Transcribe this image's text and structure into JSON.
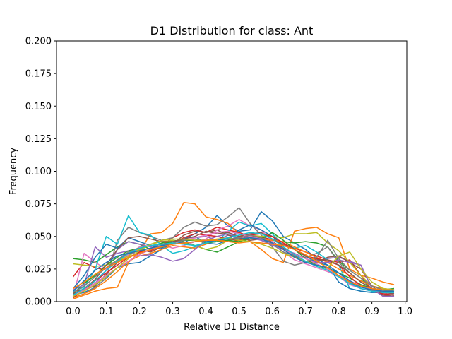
{
  "chart_data": {
    "type": "line",
    "title": "D1 Distribution for class: Ant",
    "xlabel": "Relative D1 Distance",
    "ylabel": "Frequency",
    "xlim": [
      -0.05,
      1.005
    ],
    "ylim": [
      0.0,
      0.2
    ],
    "x_ticks": [
      "0.0",
      "0.1",
      "0.2",
      "0.3",
      "0.4",
      "0.5",
      "0.6",
      "0.7",
      "0.8",
      "0.9",
      "1.0"
    ],
    "y_ticks": [
      "0.000",
      "0.025",
      "0.050",
      "0.075",
      "0.100",
      "0.125",
      "0.150",
      "0.175",
      "0.200"
    ],
    "grid": false,
    "legend": "none",
    "x": [
      0.0,
      0.0333,
      0.0667,
      0.1,
      0.1333,
      0.1667,
      0.2,
      0.2333,
      0.2667,
      0.3,
      0.3333,
      0.3667,
      0.4,
      0.4333,
      0.4667,
      0.5,
      0.5333,
      0.5667,
      0.6,
      0.6333,
      0.6667,
      0.7,
      0.7333,
      0.7667,
      0.8,
      0.8333,
      0.8667,
      0.9,
      0.9333,
      0.9667
    ],
    "series": [
      {
        "color": "#1f77b4",
        "values": [
          0.005,
          0.007,
          0.011,
          0.018,
          0.026,
          0.029,
          0.03,
          0.035,
          0.04,
          0.045,
          0.048,
          0.052,
          0.057,
          0.066,
          0.058,
          0.054,
          0.055,
          0.069,
          0.062,
          0.05,
          0.045,
          0.04,
          0.033,
          0.028,
          0.022,
          0.015,
          0.01,
          0.008,
          0.006,
          0.005
        ]
      },
      {
        "color": "#ff7f0e",
        "values": [
          0.002,
          0.005,
          0.008,
          0.01,
          0.011,
          0.03,
          0.038,
          0.052,
          0.053,
          0.06,
          0.076,
          0.075,
          0.065,
          0.063,
          0.06,
          0.052,
          0.046,
          0.04,
          0.033,
          0.03,
          0.054,
          0.056,
          0.057,
          0.052,
          0.049,
          0.025,
          0.02,
          0.018,
          0.015,
          0.013
        ]
      },
      {
        "color": "#2ca02c",
        "values": [
          0.033,
          0.032,
          0.03,
          0.036,
          0.042,
          0.046,
          0.044,
          0.04,
          0.045,
          0.047,
          0.046,
          0.043,
          0.04,
          0.038,
          0.042,
          0.046,
          0.048,
          0.05,
          0.047,
          0.046,
          0.045,
          0.046,
          0.045,
          0.042,
          0.031,
          0.024,
          0.018,
          0.009,
          0.005,
          0.004
        ]
      },
      {
        "color": "#d62728",
        "values": [
          0.019,
          0.03,
          0.026,
          0.024,
          0.032,
          0.037,
          0.039,
          0.041,
          0.043,
          0.049,
          0.053,
          0.055,
          0.053,
          0.057,
          0.055,
          0.053,
          0.05,
          0.049,
          0.048,
          0.044,
          0.041,
          0.038,
          0.035,
          0.032,
          0.03,
          0.032,
          0.02,
          0.009,
          0.008,
          0.008
        ]
      },
      {
        "color": "#9467bd",
        "values": [
          0.005,
          0.01,
          0.014,
          0.024,
          0.04,
          0.046,
          0.044,
          0.042,
          0.044,
          0.046,
          0.047,
          0.049,
          0.05,
          0.047,
          0.051,
          0.048,
          0.052,
          0.047,
          0.043,
          0.04,
          0.034,
          0.03,
          0.031,
          0.033,
          0.034,
          0.031,
          0.028,
          0.01,
          0.005,
          0.004
        ]
      },
      {
        "color": "#8c564b",
        "values": [
          0.008,
          0.009,
          0.012,
          0.021,
          0.03,
          0.036,
          0.04,
          0.038,
          0.042,
          0.044,
          0.051,
          0.054,
          0.053,
          0.055,
          0.051,
          0.049,
          0.047,
          0.048,
          0.046,
          0.041,
          0.035,
          0.031,
          0.03,
          0.034,
          0.035,
          0.03,
          0.025,
          0.012,
          0.005,
          0.004
        ]
      },
      {
        "color": "#e377c2",
        "values": [
          0.004,
          0.037,
          0.03,
          0.025,
          0.031,
          0.036,
          0.042,
          0.043,
          0.044,
          0.041,
          0.043,
          0.046,
          0.048,
          0.055,
          0.058,
          0.063,
          0.058,
          0.055,
          0.046,
          0.038,
          0.032,
          0.029,
          0.026,
          0.023,
          0.019,
          0.013,
          0.01,
          0.008,
          0.007,
          0.006
        ]
      },
      {
        "color": "#7f7f7f",
        "values": [
          0.003,
          0.006,
          0.011,
          0.018,
          0.047,
          0.057,
          0.053,
          0.05,
          0.047,
          0.049,
          0.057,
          0.061,
          0.058,
          0.059,
          0.065,
          0.072,
          0.06,
          0.051,
          0.044,
          0.038,
          0.035,
          0.034,
          0.037,
          0.042,
          0.03,
          0.022,
          0.015,
          0.01,
          0.008,
          0.007
        ]
      },
      {
        "color": "#bcbd22",
        "values": [
          0.029,
          0.028,
          0.027,
          0.028,
          0.031,
          0.035,
          0.04,
          0.044,
          0.046,
          0.047,
          0.045,
          0.043,
          0.04,
          0.042,
          0.047,
          0.049,
          0.051,
          0.05,
          0.05,
          0.049,
          0.052,
          0.052,
          0.053,
          0.045,
          0.039,
          0.03,
          0.02,
          0.012,
          0.009,
          0.008
        ]
      },
      {
        "color": "#17becf",
        "values": [
          0.008,
          0.011,
          0.025,
          0.05,
          0.044,
          0.066,
          0.053,
          0.051,
          0.043,
          0.037,
          0.039,
          0.042,
          0.045,
          0.046,
          0.054,
          0.061,
          0.058,
          0.06,
          0.052,
          0.043,
          0.041,
          0.043,
          0.038,
          0.032,
          0.028,
          0.01,
          0.008,
          0.007,
          0.008,
          0.009
        ]
      },
      {
        "color": "#1f77b4",
        "values": [
          0.01,
          0.02,
          0.034,
          0.044,
          0.041,
          0.049,
          0.046,
          0.043,
          0.041,
          0.046,
          0.045,
          0.05,
          0.045,
          0.044,
          0.047,
          0.055,
          0.059,
          0.055,
          0.05,
          0.043,
          0.04,
          0.035,
          0.03,
          0.028,
          0.015,
          0.01,
          0.008,
          0.007,
          0.007,
          0.008
        ]
      },
      {
        "color": "#ff7f0e",
        "values": [
          0.003,
          0.006,
          0.01,
          0.016,
          0.023,
          0.031,
          0.035,
          0.037,
          0.04,
          0.043,
          0.042,
          0.041,
          0.044,
          0.048,
          0.046,
          0.047,
          0.049,
          0.048,
          0.047,
          0.046,
          0.042,
          0.038,
          0.034,
          0.03,
          0.025,
          0.02,
          0.016,
          0.012,
          0.01,
          0.009
        ]
      },
      {
        "color": "#2ca02c",
        "values": [
          0.006,
          0.014,
          0.02,
          0.028,
          0.034,
          0.039,
          0.041,
          0.043,
          0.044,
          0.046,
          0.047,
          0.047,
          0.045,
          0.046,
          0.047,
          0.046,
          0.049,
          0.048,
          0.053,
          0.047,
          0.04,
          0.033,
          0.028,
          0.025,
          0.022,
          0.018,
          0.013,
          0.01,
          0.009,
          0.01
        ]
      },
      {
        "color": "#d62728",
        "values": [
          0.003,
          0.009,
          0.016,
          0.022,
          0.028,
          0.034,
          0.038,
          0.039,
          0.043,
          0.045,
          0.049,
          0.052,
          0.051,
          0.05,
          0.048,
          0.047,
          0.051,
          0.052,
          0.05,
          0.045,
          0.04,
          0.035,
          0.033,
          0.031,
          0.028,
          0.019,
          0.012,
          0.008,
          0.006,
          0.005
        ]
      },
      {
        "color": "#9467bd",
        "values": [
          0.009,
          0.013,
          0.042,
          0.034,
          0.037,
          0.039,
          0.035,
          0.036,
          0.034,
          0.031,
          0.033,
          0.04,
          0.047,
          0.05,
          0.052,
          0.05,
          0.049,
          0.047,
          0.044,
          0.04,
          0.037,
          0.033,
          0.03,
          0.03,
          0.032,
          0.03,
          0.028,
          0.01,
          0.004,
          0.004
        ]
      },
      {
        "color": "#8c564b",
        "values": [
          0.006,
          0.01,
          0.017,
          0.028,
          0.04,
          0.049,
          0.05,
          0.048,
          0.046,
          0.046,
          0.048,
          0.05,
          0.054,
          0.052,
          0.053,
          0.05,
          0.052,
          0.053,
          0.048,
          0.043,
          0.04,
          0.035,
          0.032,
          0.032,
          0.028,
          0.022,
          0.015,
          0.01,
          0.007,
          0.006
        ]
      },
      {
        "color": "#e377c2",
        "values": [
          0.004,
          0.009,
          0.014,
          0.02,
          0.026,
          0.031,
          0.036,
          0.04,
          0.043,
          0.045,
          0.047,
          0.049,
          0.051,
          0.053,
          0.054,
          0.052,
          0.05,
          0.048,
          0.045,
          0.04,
          0.036,
          0.033,
          0.029,
          0.025,
          0.02,
          0.016,
          0.012,
          0.009,
          0.008,
          0.007
        ]
      },
      {
        "color": "#7f7f7f",
        "values": [
          0.007,
          0.012,
          0.019,
          0.026,
          0.032,
          0.038,
          0.041,
          0.043,
          0.044,
          0.045,
          0.047,
          0.048,
          0.046,
          0.047,
          0.048,
          0.049,
          0.051,
          0.049,
          0.042,
          0.031,
          0.028,
          0.03,
          0.034,
          0.047,
          0.033,
          0.024,
          0.018,
          0.012,
          0.009,
          0.008
        ]
      },
      {
        "color": "#bcbd22",
        "values": [
          0.004,
          0.008,
          0.013,
          0.019,
          0.026,
          0.033,
          0.039,
          0.044,
          0.047,
          0.048,
          0.048,
          0.047,
          0.047,
          0.048,
          0.049,
          0.047,
          0.046,
          0.044,
          0.041,
          0.037,
          0.034,
          0.031,
          0.028,
          0.026,
          0.035,
          0.038,
          0.025,
          0.015,
          0.01,
          0.009
        ]
      },
      {
        "color": "#17becf",
        "values": [
          0.005,
          0.01,
          0.016,
          0.024,
          0.031,
          0.037,
          0.041,
          0.043,
          0.044,
          0.045,
          0.044,
          0.043,
          0.045,
          0.047,
          0.049,
          0.051,
          0.053,
          0.052,
          0.048,
          0.042,
          0.036,
          0.031,
          0.027,
          0.024,
          0.019,
          0.014,
          0.01,
          0.008,
          0.007,
          0.007
        ]
      },
      {
        "color": "#1f77b4",
        "values": [
          0.008,
          0.016,
          0.024,
          0.03,
          0.035,
          0.037,
          0.039,
          0.041,
          0.043,
          0.044,
          0.045,
          0.046,
          0.046,
          0.047,
          0.048,
          0.048,
          0.049,
          0.048,
          0.045,
          0.04,
          0.034,
          0.03,
          0.028,
          0.026,
          0.022,
          0.016,
          0.011,
          0.009,
          0.008,
          0.008
        ]
      },
      {
        "color": "#ff7f0e",
        "values": [
          0.01,
          0.015,
          0.021,
          0.026,
          0.03,
          0.034,
          0.037,
          0.04,
          0.042,
          0.044,
          0.045,
          0.046,
          0.047,
          0.047,
          0.046,
          0.045,
          0.046,
          0.045,
          0.044,
          0.043,
          0.04,
          0.036,
          0.031,
          0.026,
          0.02,
          0.015,
          0.012,
          0.01,
          0.009,
          0.009
        ]
      }
    ]
  }
}
